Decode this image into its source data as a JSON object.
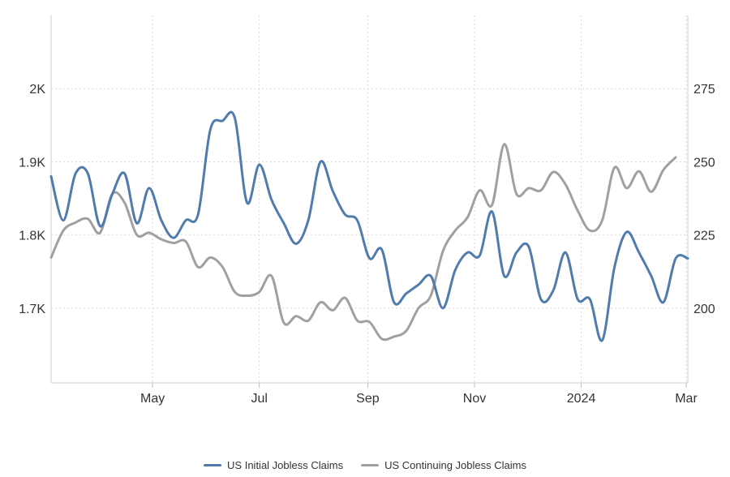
{
  "chart_data": {
    "type": "line",
    "title": "",
    "xlabel": "",
    "x_ticks": [
      {
        "label": "May",
        "date": "2023-05-01"
      },
      {
        "label": "Jul",
        "date": "2023-07-01"
      },
      {
        "label": "Sep",
        "date": "2023-09-01"
      },
      {
        "label": "Nov",
        "date": "2023-11-01"
      },
      {
        "label": "2024",
        "date": "2024-01-01"
      },
      {
        "label": "Mar",
        "date": "2024-03-01"
      }
    ],
    "x_range": [
      "2023-03-04",
      "2024-03-01"
    ],
    "left_axis": {
      "ylim": [
        1600,
        2100
      ],
      "ticks": [
        {
          "value": 1700,
          "label": "1.7K"
        },
        {
          "value": 1800,
          "label": "1.8K"
        },
        {
          "value": 1900,
          "label": "1.9K"
        },
        {
          "value": 2000,
          "label": "2K"
        }
      ]
    },
    "right_axis": {
      "ylim": [
        175,
        300
      ],
      "ticks": [
        {
          "value": 200,
          "label": "200"
        },
        {
          "value": 225,
          "label": "225"
        },
        {
          "value": 250,
          "label": "250"
        },
        {
          "value": 275,
          "label": "275"
        }
      ]
    },
    "grid": true,
    "legend_position": "bottom",
    "start_week": "2023-03-04",
    "series": [
      {
        "name": "US Initial Jobless Claims",
        "axis": "right",
        "color": "#4f7cac",
        "values": [
          245,
          230,
          246,
          246,
          228,
          239,
          246,
          229,
          241,
          230,
          224,
          230,
          232,
          261,
          264,
          265,
          236,
          249,
          237,
          229,
          222,
          230,
          250,
          240,
          232,
          230,
          217,
          220,
          202,
          205,
          208,
          211,
          200,
          213,
          219,
          218,
          233,
          211,
          219,
          221,
          203,
          206,
          219,
          203,
          203,
          189,
          214,
          226,
          219,
          211,
          202,
          217,
          217
        ]
      },
      {
        "name": "US Continuing Jobless Claims",
        "axis": "left",
        "color": "#a0a0a0",
        "values": [
          1769,
          1806,
          1817,
          1822,
          1803,
          1856,
          1844,
          1800,
          1803,
          1794,
          1789,
          1791,
          1756,
          1769,
          1756,
          1722,
          1717,
          1722,
          1744,
          1680,
          1689,
          1683,
          1708,
          1697,
          1714,
          1683,
          1681,
          1658,
          1661,
          1669,
          1700,
          1717,
          1778,
          1806,
          1824,
          1861,
          1841,
          1924,
          1856,
          1864,
          1861,
          1886,
          1869,
          1833,
          1806,
          1820,
          1892,
          1864,
          1887,
          1859,
          1889,
          1906
        ]
      }
    ]
  }
}
